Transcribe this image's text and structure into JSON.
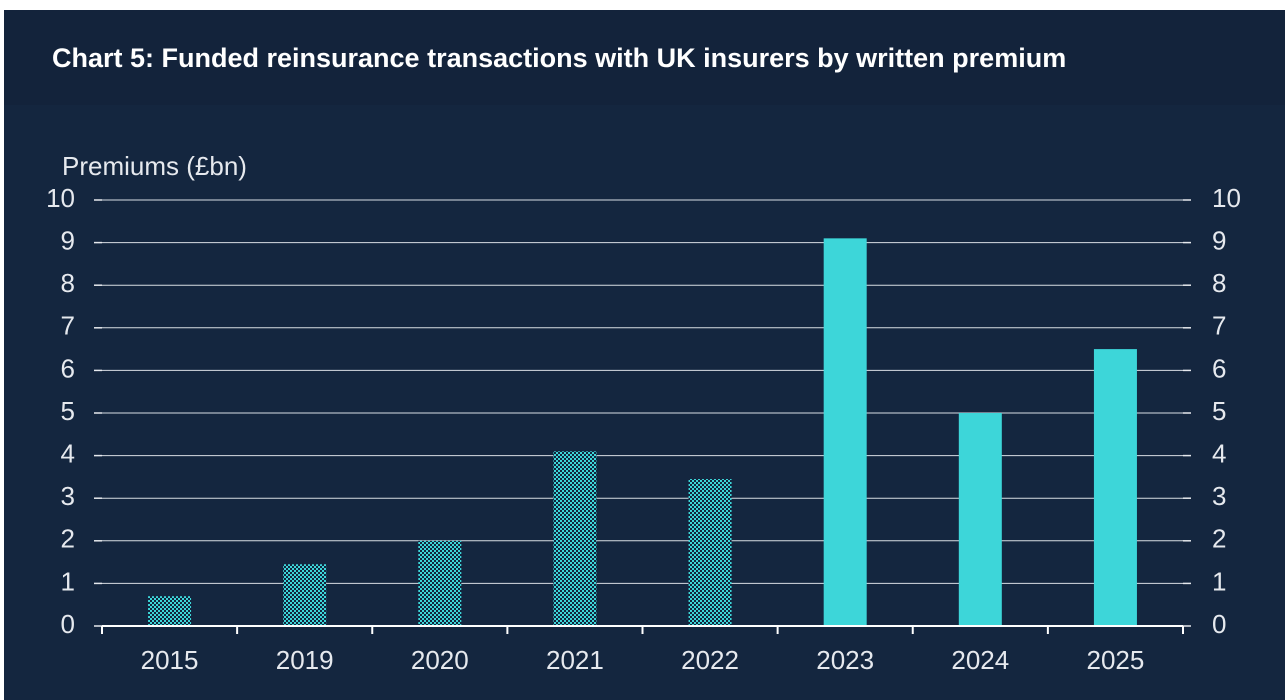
{
  "chart_data": {
    "type": "bar",
    "title": "Chart 5: Funded reinsurance transactions with UK insurers by written premium",
    "y_axis_label": "Premiums (£bn)",
    "categories": [
      "2015",
      "2019",
      "2020",
      "2021",
      "2022",
      "2023",
      "2024",
      "2025"
    ],
    "values": [
      0.7,
      1.45,
      2.0,
      4.1,
      3.45,
      9.1,
      5.0,
      6.5
    ],
    "bar_styles": [
      "checkered",
      "checkered",
      "checkered",
      "checkered",
      "checkered",
      "solid",
      "solid",
      "solid"
    ],
    "color": "#3dd6d9",
    "ylim": [
      0,
      10
    ],
    "yticks": [
      0,
      1,
      2,
      3,
      4,
      5,
      6,
      7,
      8,
      9,
      10
    ],
    "grid": true,
    "mirror_y_axis": true
  }
}
